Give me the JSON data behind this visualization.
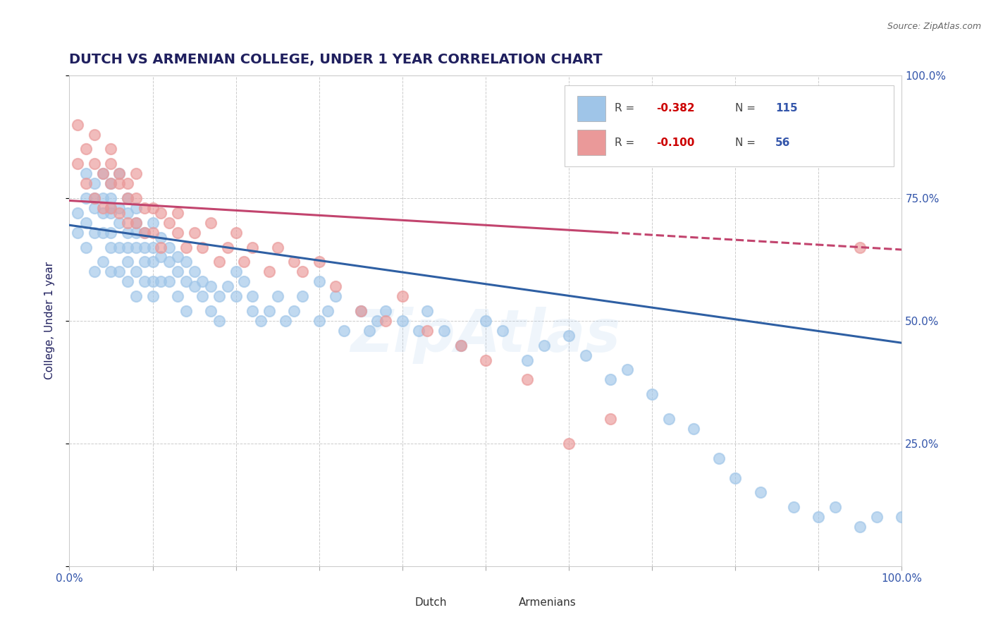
{
  "title": "DUTCH VS ARMENIAN COLLEGE, UNDER 1 YEAR CORRELATION CHART",
  "source_text": "Source: ZipAtlas.com",
  "ylabel": "College, Under 1 year",
  "xlim": [
    0.0,
    1.0
  ],
  "ylim": [
    0.0,
    1.0
  ],
  "dutch_color": "#9fc5e8",
  "dutch_line_color": "#2e5fa3",
  "armenian_color": "#ea9999",
  "armenian_line_color": "#c2446e",
  "dutch_R": -0.382,
  "dutch_N": 115,
  "armenian_R": -0.1,
  "armenian_N": 56,
  "watermark": "ZipAtlas",
  "background_color": "#ffffff",
  "grid_color": "#cccccc",
  "title_color": "#1f1f5e",
  "axis_label_color": "#1f1f5e",
  "tick_label_color": "#3355aa",
  "source_color": "#666666",
  "dutch_scatter_x": [
    0.01,
    0.01,
    0.02,
    0.02,
    0.02,
    0.02,
    0.03,
    0.03,
    0.03,
    0.03,
    0.03,
    0.04,
    0.04,
    0.04,
    0.04,
    0.04,
    0.05,
    0.05,
    0.05,
    0.05,
    0.05,
    0.05,
    0.05,
    0.06,
    0.06,
    0.06,
    0.06,
    0.06,
    0.07,
    0.07,
    0.07,
    0.07,
    0.07,
    0.07,
    0.08,
    0.08,
    0.08,
    0.08,
    0.08,
    0.08,
    0.09,
    0.09,
    0.09,
    0.09,
    0.1,
    0.1,
    0.1,
    0.1,
    0.1,
    0.11,
    0.11,
    0.11,
    0.12,
    0.12,
    0.12,
    0.13,
    0.13,
    0.13,
    0.14,
    0.14,
    0.14,
    0.15,
    0.15,
    0.16,
    0.16,
    0.17,
    0.17,
    0.18,
    0.18,
    0.19,
    0.2,
    0.2,
    0.21,
    0.22,
    0.22,
    0.23,
    0.24,
    0.25,
    0.26,
    0.27,
    0.28,
    0.3,
    0.3,
    0.31,
    0.32,
    0.33,
    0.35,
    0.36,
    0.37,
    0.38,
    0.4,
    0.42,
    0.43,
    0.45,
    0.47,
    0.5,
    0.52,
    0.55,
    0.57,
    0.6,
    0.62,
    0.65,
    0.67,
    0.7,
    0.72,
    0.75,
    0.78,
    0.8,
    0.83,
    0.87,
    0.9,
    0.92,
    0.95,
    0.97,
    1.0
  ],
  "dutch_scatter_y": [
    0.72,
    0.68,
    0.75,
    0.8,
    0.7,
    0.65,
    0.78,
    0.73,
    0.68,
    0.75,
    0.6,
    0.8,
    0.72,
    0.68,
    0.62,
    0.75,
    0.78,
    0.73,
    0.68,
    0.65,
    0.72,
    0.6,
    0.75,
    0.73,
    0.7,
    0.65,
    0.6,
    0.8,
    0.72,
    0.68,
    0.65,
    0.62,
    0.75,
    0.58,
    0.7,
    0.68,
    0.65,
    0.6,
    0.73,
    0.55,
    0.68,
    0.65,
    0.62,
    0.58,
    0.7,
    0.65,
    0.62,
    0.58,
    0.55,
    0.67,
    0.63,
    0.58,
    0.65,
    0.62,
    0.58,
    0.63,
    0.6,
    0.55,
    0.62,
    0.58,
    0.52,
    0.6,
    0.57,
    0.58,
    0.55,
    0.57,
    0.52,
    0.55,
    0.5,
    0.57,
    0.6,
    0.55,
    0.58,
    0.52,
    0.55,
    0.5,
    0.52,
    0.55,
    0.5,
    0.52,
    0.55,
    0.58,
    0.5,
    0.52,
    0.55,
    0.48,
    0.52,
    0.48,
    0.5,
    0.52,
    0.5,
    0.48,
    0.52,
    0.48,
    0.45,
    0.5,
    0.48,
    0.42,
    0.45,
    0.47,
    0.43,
    0.38,
    0.4,
    0.35,
    0.3,
    0.28,
    0.22,
    0.18,
    0.15,
    0.12,
    0.1,
    0.12,
    0.08,
    0.1,
    0.1
  ],
  "armenian_scatter_x": [
    0.01,
    0.01,
    0.02,
    0.02,
    0.03,
    0.03,
    0.03,
    0.04,
    0.04,
    0.05,
    0.05,
    0.05,
    0.05,
    0.06,
    0.06,
    0.06,
    0.07,
    0.07,
    0.07,
    0.08,
    0.08,
    0.08,
    0.09,
    0.09,
    0.1,
    0.1,
    0.11,
    0.11,
    0.12,
    0.13,
    0.13,
    0.14,
    0.15,
    0.16,
    0.17,
    0.18,
    0.19,
    0.2,
    0.21,
    0.22,
    0.24,
    0.25,
    0.27,
    0.28,
    0.3,
    0.32,
    0.35,
    0.38,
    0.4,
    0.43,
    0.47,
    0.5,
    0.55,
    0.6,
    0.65,
    0.95
  ],
  "armenian_scatter_y": [
    0.82,
    0.9,
    0.85,
    0.78,
    0.88,
    0.82,
    0.75,
    0.8,
    0.73,
    0.82,
    0.78,
    0.73,
    0.85,
    0.78,
    0.72,
    0.8,
    0.75,
    0.7,
    0.78,
    0.75,
    0.7,
    0.8,
    0.73,
    0.68,
    0.73,
    0.68,
    0.72,
    0.65,
    0.7,
    0.68,
    0.72,
    0.65,
    0.68,
    0.65,
    0.7,
    0.62,
    0.65,
    0.68,
    0.62,
    0.65,
    0.6,
    0.65,
    0.62,
    0.6,
    0.62,
    0.57,
    0.52,
    0.5,
    0.55,
    0.48,
    0.45,
    0.42,
    0.38,
    0.25,
    0.3,
    0.65
  ],
  "dutch_trend_x0": 0.0,
  "dutch_trend_y0": 0.695,
  "dutch_trend_x1": 1.0,
  "dutch_trend_y1": 0.455,
  "armenian_trend_x0": 0.0,
  "armenian_trend_y0": 0.745,
  "armenian_trend_x1": 1.0,
  "armenian_trend_y1": 0.645
}
